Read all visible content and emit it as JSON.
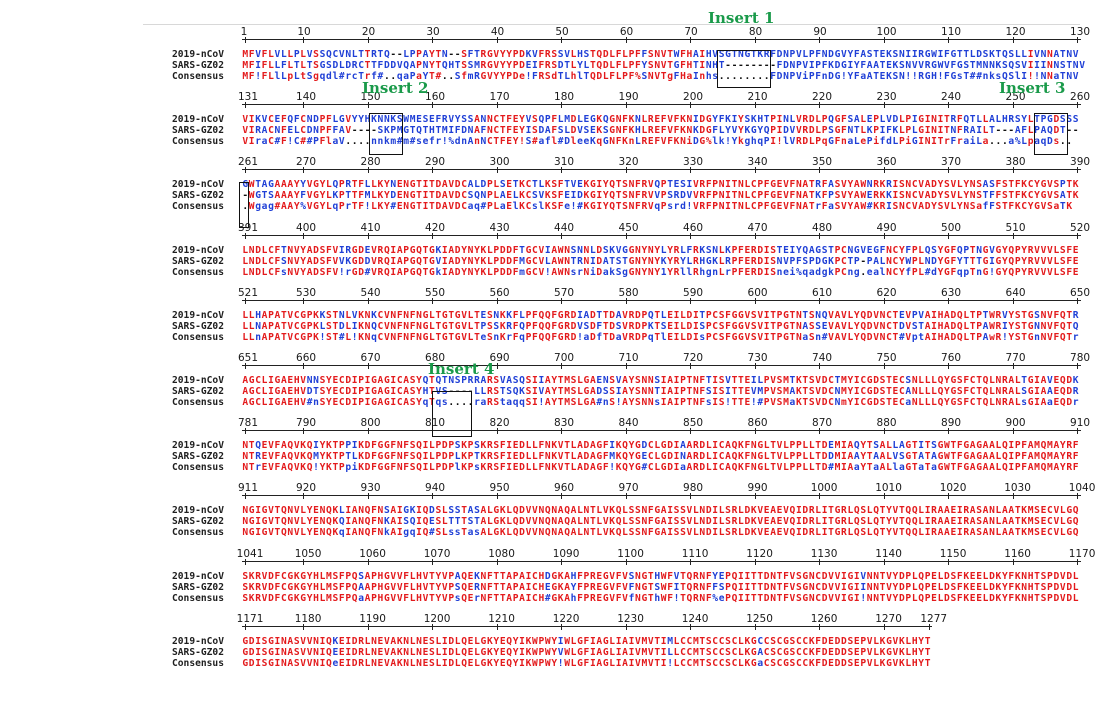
{
  "colors": {
    "consensus_high": "#e31a1c",
    "consensus_low": "#1f3fd6",
    "neutral": "#101010",
    "insert_label": "#1a9a4a"
  },
  "labels": [
    "2019-nCoV",
    "SARS-GZ02",
    "Consensus"
  ],
  "inserts": [
    "Insert 1",
    "Insert 2",
    "Insert 3",
    "Insert 4"
  ],
  "blocks": [
    {
      "start": 1,
      "ticks": [
        "1",
        "10",
        "20",
        "30",
        "40",
        "50",
        "60",
        "70",
        "80",
        "90",
        "100",
        "110",
        "120",
        "130"
      ],
      "rows": [
        "MFVFLVLLPLVSSQCVNLTTRTQ--LPPAYTN--SFTRGVYYPDKVFRSSVLHSTQDLFLPFFSNVTWFHAIHVSGTNGTKRFDNPVLPFNDGVYFASTEKSNIIRGWIFGTTLDSKTQSLLIVNNATNV",
        "MFIFLLFLTLTSGSDLDRCTTFDDVQAPNYTQHTSSMRGVYYPDEIFRSDTLYLTQDLFLPFYSNVTGFHTINHT--------FDNPVIPFKDGIYFAATEKSNVVRGWVFGSTMNNKSQSVIIINNSTNV",
        "MF!FLlLpLtSgqdl#rcTrf#..qaPaYT#..SfmRGVYYPDe!FRSdTLhlTQDLFLPF%SNVTgFHaInhs........FDNPViPFnDG!YFaATEKSN!!RGH!FGsT##nksQSlI!!NNaTNV"
      ]
    },
    {
      "start": 131,
      "ticks": [
        "131",
        "140",
        "150",
        "160",
        "170",
        "180",
        "190",
        "200",
        "210",
        "220",
        "230",
        "240",
        "250",
        "260"
      ],
      "rows": [
        "VIKVCEFQFCNDPFLGVYYHKNNKSWMESEFRVYSSANNCTFEYVSQPFLMDLEGKQGNFKNLREFVFKNIDGYFKIYSKHTPINLVRDLPQGFSALEPLVDLPIGINITRFQTLLALHRSYLTPGDSSS",
        "VIRACNFELCDNPFFAV----SKPMGTQTHTMIFDNAFNCTFEYISDAFSLDVSEKSGNFKHLREFVFKNKDGFLYVYKGYQPIDVVRDLPSGFNTLKPIFKLPLGINITNFRAILT---AFLPAQDT--",
        "VIraC#F!C##PFlaV....nnkm#m#sefr!%dnAnNCTFEY!S#afl#DleeKqGNFKnLREFVFKNiDG%lk!YkghqPI!lVRDLPqGFnaLePifdLPiGINITrFraiLa...a%LpaqDs.."
      ]
    },
    {
      "start": 261,
      "ticks": [
        "261",
        "270",
        "280",
        "290",
        "300",
        "310",
        "320",
        "330",
        "340",
        "350",
        "360",
        "370",
        "380",
        "390"
      ],
      "rows": [
        "GWTAGAAAYYVGYLQPRTFLLKYNENGTITDAVDCALDPLSETKCTLKSFTVEKGIYQTSNFRVQPTESIVRFPNITNLCPFGEVFNATRFASVYAWNRKRISNCVADYSVLYNSASFSTFKCYGVSPTK",
        "-WGTSAAAYFVGYLKPTTFMLKYDENGTITDAVDCSQNPLAELKCSVKSFEIDKGIYQTSNFRVVPSRDVVRFPNITNLCPFGEVFNATKFPSVYAWERKKISNCVADYSVLYNSTFFSTFKCYGVSATK",
        ".Wgag#AAY%VGYLqPrTF!LKY#ENGTITDAVDCaq#PLaElKCslKSFe!#KGIYQTSNFRVqPsrd!VRFPNITNLCPFGEVFNATrFaSVYAW#KRISNCVADYSVLYNSafFSTFKCYGVSaTK"
      ]
    },
    {
      "start": 391,
      "ticks": [
        "391",
        "400",
        "410",
        "420",
        "430",
        "440",
        "450",
        "460",
        "470",
        "480",
        "490",
        "500",
        "510",
        "520"
      ],
      "rows": [
        "LNDLCFTNVYADSFVIRGDEVRQIAPGQTGKIADYNYKLPDDFTGCVIAWNSNNLDSKVGGNYNYLYRLFRKSNLKPFERDISTEIYQAGSTPCNGVEGFNCYFPLQSYGFQPTNGVGYQPYRVVVLSFE",
        "LNDLCFSNVYADSFVVKGDDVRQIAPGQTGVIADYNYKLPDDFMGCVLAWNTRNIDATSTGNYNYKYRYLRHGKLRPFERDISNVPFSPDGKPCTP-PALNCYWPLNDYGFYTTTGIGYQPYRVVVLSFE",
        "LNDLCFsNVYADSFV!rGD#VRQIAPGQTGkIADYNYKLPDDFmGCV!AWNsrNiDakSgGNYNY1YRllRhgnLrPFERDISnei%qadgkPCng.ealNCYfPL#dYGFqpTnG!GYQPYRVVVLSFE"
      ]
    },
    {
      "start": 521,
      "ticks": [
        "521",
        "530",
        "540",
        "550",
        "560",
        "570",
        "580",
        "590",
        "600",
        "610",
        "620",
        "630",
        "640",
        "650"
      ],
      "rows": [
        "LLHAPATVCGPKKSTNLVKNKCVNFNFNGLTGTGVLTESNKKFLPFQQFGRDIADTTDAVRDPQTLEILDITPCSFGGVSVITPGTNTSNQVAVLYQDVNCTEVPVAIHADQLTPTWRVYSTGSNVFQTR",
        "LLNAPATVCGPKLSTDLIKNQCVNFNFNGLTGTGVLTPSSKRFQPFQQFGRDVSDFTDSVRDPKTSEILDISPCSFGGVSVITPGTNASSEVAVLYQDVNCTDVSTAIHADQLTPAWRIYSTGNNVFQTQ",
        "LLnAPATVCGPK!ST#L!KNqCVNFNFNGLTGTGVLTeSnKrFqPFQQFGRD!aDfTDaVRDPqTlEILDIsPCSFGGVSVITPGTNaSn#VAVLYQDVNCT#VptAIHADQLTPAwR!YSTGnNVFQTr"
      ]
    },
    {
      "start": 651,
      "ticks": [
        "651",
        "660",
        "670",
        "680",
        "690",
        "700",
        "710",
        "720",
        "730",
        "740",
        "750",
        "760",
        "770",
        "780"
      ],
      "rows": [
        "AGCLIGAEHVNNSYECDIPIGAGICASYQTQTNSPRRARSVASQSIIAYTMSLGAENSVAYSNNSIAIPTNFTISVTTEILPVSMTKTSVDCTMYICGDSTECSNLLLQYGSFCTQLNRALTGIAVEQDK",
        "AGCLIGAEHVDTSYECDIPIGAGICASYHTVS----LLRSTSQKSIVAYTMSLGADSSIAYSNNTIAIPTNFSISITTEVMPVSMAKTSVDCNMYICGDSTECANLLLQYGSFCTQLNRALSGIAAEQDR",
        "AGCLIGAEHV#nSYECDIPIGAGICASYqTqs....raRStaqqSI!AYTMSLGA#nS!AYSNNsIAIPTNFsIS!TTE!#PVSMaKTSVDCNmYICGDSTECaNLLLQYGSFCTQLNRALsGIAaEQDr"
      ]
    },
    {
      "start": 781,
      "ticks": [
        "781",
        "790",
        "800",
        "810",
        "820",
        "830",
        "840",
        "850",
        "860",
        "870",
        "880",
        "890",
        "900",
        "910"
      ],
      "rows": [
        "NTQEVFAQVKQIYKTPPIKDFGGFNFSQILPDPSKPSKRSFIEDLLFNKVTLADAGFIKQYGDCLGDIAARDLICAQKFNGLTVLPPLLTDEMIAQYTSALLAGTITSGWTFGAGAALQIPFAMQMAYRF",
        "NTREVFAQVKQMYKTPTLKDFGGFNFSQILPDPLKPTKRSFIEDLLFNKVTLADAGFMKQYGECLGDINARDLICAQKFNGLTVLPPLLTDDMIAAYTAALVSGTATAGWTFGAGAALQIPFAMQMAYRF",
        "NTrEVFAQVKQ!YKTPpiKDFGGFNFSQILPDPlKPsKRSFIEDLLFNKVTLADAGF!KQYG#CLGDIaARDLICAQKFNGLTVLPPLLTD#MIAaYTaALlaGTaTaGWTFGAGAALQIPFAMQMAYRF"
      ]
    },
    {
      "start": 911,
      "ticks": [
        "911",
        "920",
        "930",
        "940",
        "950",
        "960",
        "970",
        "980",
        "990",
        "1000",
        "1010",
        "1020",
        "1030",
        "1040"
      ],
      "rows": [
        "NGIGVTQNVLYENQKLIANQFNSAIGKIQDSLSSTASALGKLQDVVNQNAQALNTLVKQLSSNFGAISSVLNDILSRLDKVEAEVQIDRLITGRLQSLQTYVTQQLIRAAEIRASANLAATKMSECVLGQ",
        "NGIGVTQNVLYENQKQIANQFNKAISQIQESLTTTSTALGKLQDVVNQNAQALNTLVKQLSSNFGAISSVLNDILSRLDKVEAEVQIDRLITGRLQSLQTYVTQQLIRAAEIRASANLAATKMSECVLGQ",
        "NGIGVTQNVLYENQKqIANQFNkAIgqIQ#SLssTasALGKLQDVVNQNAQALNTLVKQLSSNFGAISSVLNDILSRLDKVEAEVQIDRLITGRLQSLQTYVTQQLIRAAEIRASANLAATKMSECVLGQ"
      ]
    },
    {
      "start": 1041,
      "ticks": [
        "1041",
        "1050",
        "1060",
        "1070",
        "1080",
        "1090",
        "1100",
        "1110",
        "1120",
        "1130",
        "1140",
        "1150",
        "1160",
        "1170"
      ],
      "rows": [
        "SKRVDFCGKGYHLMSFPQSAPHGVVFLHVTYVPAQEKNFTTAPAICHDGKAHFPREGVFVSNGTHWFVTQRNFYEPQIITTDNTFVSGNCDVVIGIVNNTVYDPLQPELDSFKEELDKYFKNHTSPDVDL",
        "SKRVDFCGKGYHLMSFPQAAPHGVVFLHVTYVPSQERNFTTAPAICHEGKAYFPREGVFVFNGTSWFITQRNFFSPQIITTDNTFVSGNCDVVIGIINNTVYDPLQPELDSFKEELDKYFKNHTSPDVDL",
        "SKRVDFCGKGYHLMSFPQaAPHGVVFLHVTYVPsQErNFTTAPAICH#GKAhFPREGVFVfNGThWF!TQRNF%ePQIITTDNTFVSGNCDVVIGI!NNTVYDPLQPELDSFKEELDKYFKNHTSPDVDL"
      ]
    },
    {
      "start": 1171,
      "ticks": [
        "1171",
        "1180",
        "1190",
        "1200",
        "1210",
        "1220",
        "1230",
        "1240",
        "1250",
        "1260",
        "1270",
        "1277"
      ],
      "rows": [
        "GDISGINASVVNIQKEIDRLNEVAKNLNESLIDLQELGKYEQYIKWPWYIWLGFIAGLIAIVMVTIMLCCMTSCCSCLKGCCSCGSCCKFDEDDSEPVLKGVKLHYT",
        "GDISGINASVVNIQEEIDRLNEVAKNLNESLIDLQELGKYEQYIKWPWYVWLGFIAGLIAIVMVTILLCCMTSCCSCLKGACSCGSCCKFDEDDSEPVLKGVKLHYT",
        "GDISGINASVVNIQeEIDRLNEVAKNLNESLIDLQELGKYEQYIKWPWY!WLGFIAGLIAIVMVTI!LCCMTSCCSCLKGaCSCGSCCKFDEDDSEPVLKGVKLHYT"
      ]
    }
  ]
}
